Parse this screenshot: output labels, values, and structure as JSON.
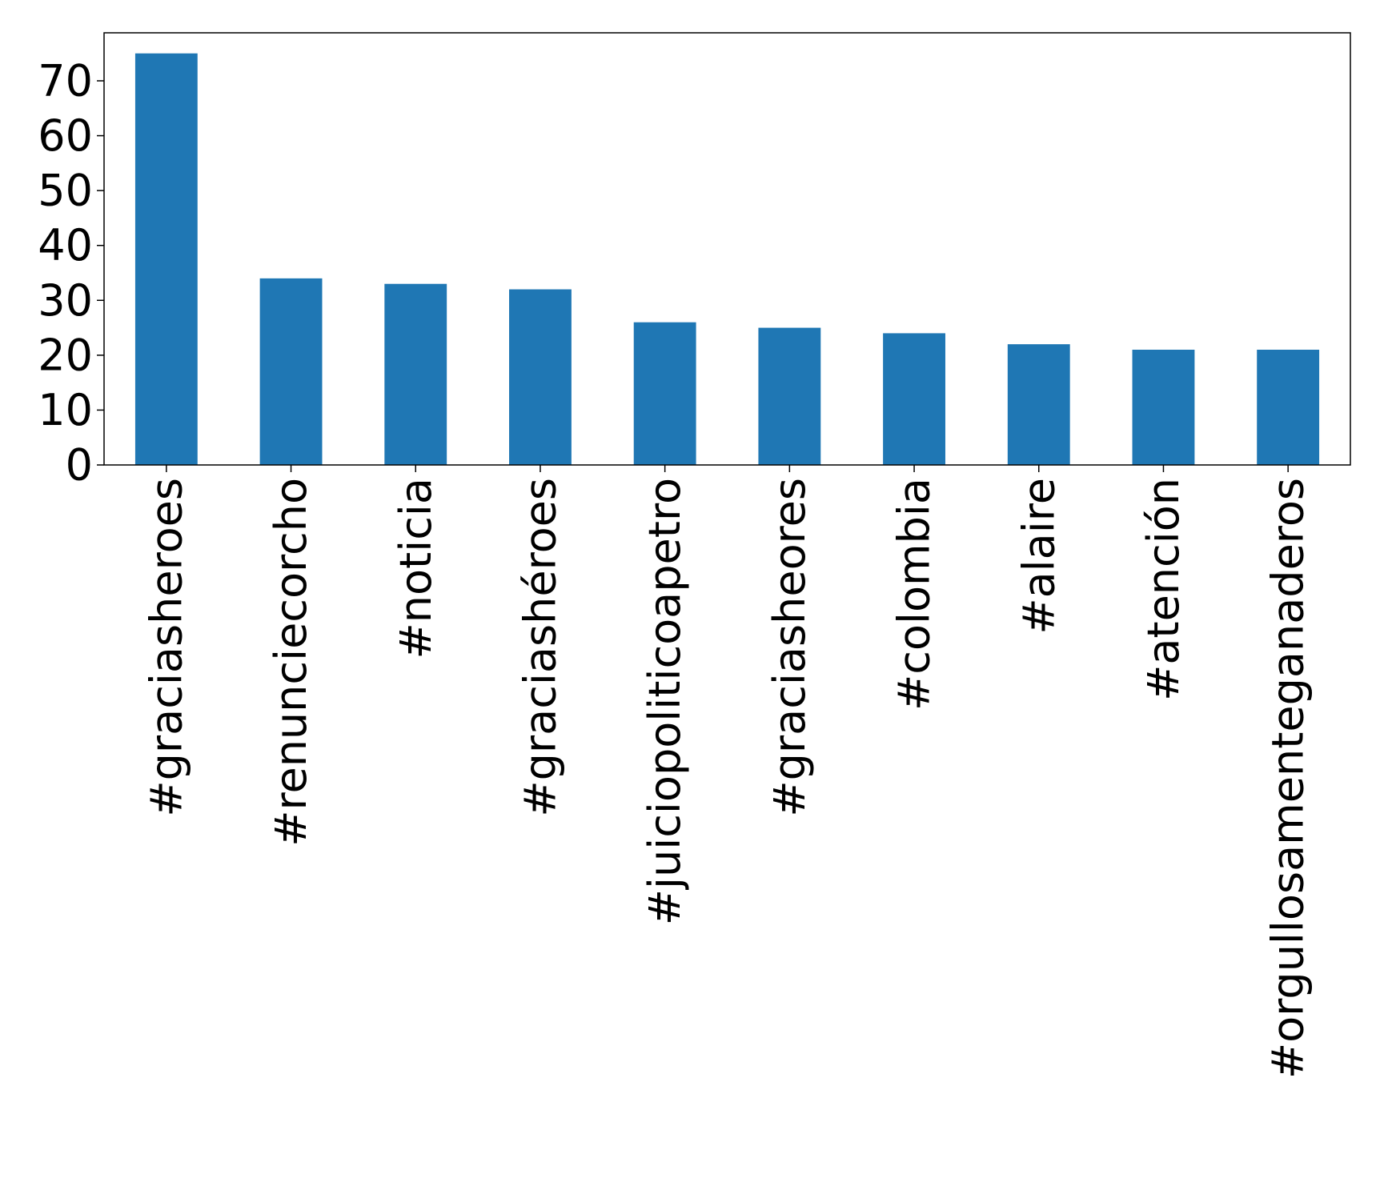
{
  "chart_data": {
    "type": "bar",
    "categories": [
      "#graciasheroes",
      "#renunciecorcho",
      "#noticia",
      "#graciashéroes",
      "#juiciopoliticoapetro",
      "#graciasheores",
      "#colombia",
      "#alaire",
      "#atención",
      "#orgullosamenteganaderos"
    ],
    "values": [
      75,
      34,
      33,
      32,
      26,
      25,
      24,
      22,
      21,
      21
    ],
    "title": "",
    "xlabel": "",
    "ylabel": "",
    "ylim": [
      0,
      78.75
    ],
    "yticks": [
      0,
      10,
      20,
      30,
      40,
      50,
      60,
      70
    ],
    "grid": false,
    "legend": "none",
    "bar_color": "#1f77b4"
  }
}
